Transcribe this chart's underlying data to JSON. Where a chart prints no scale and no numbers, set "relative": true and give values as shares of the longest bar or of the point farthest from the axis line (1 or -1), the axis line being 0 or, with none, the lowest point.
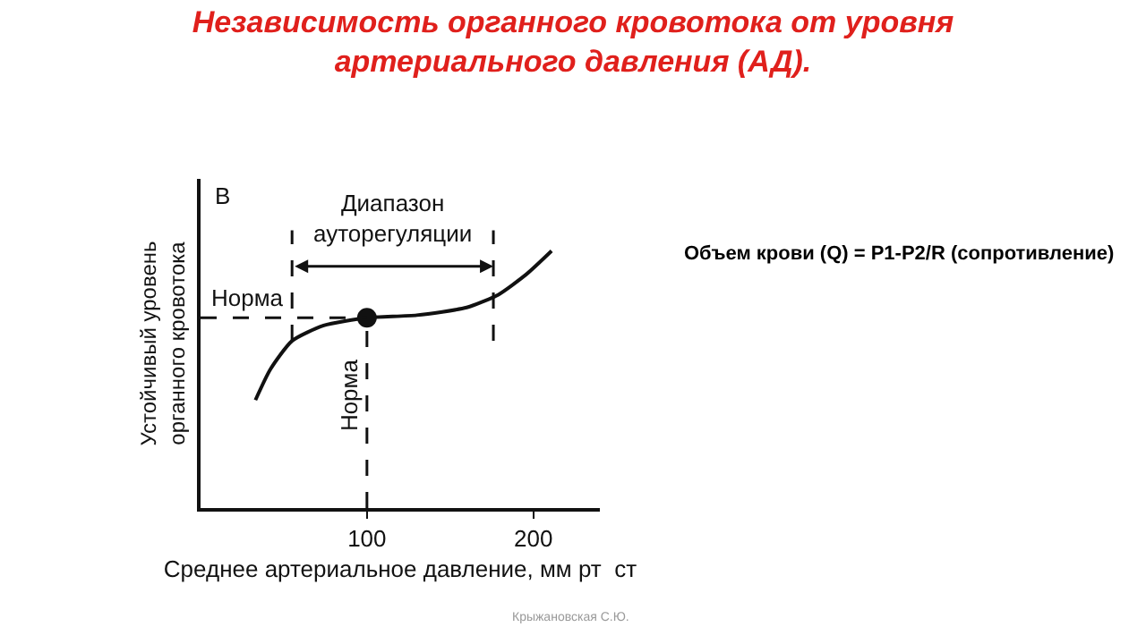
{
  "chart_data": {
    "type": "line",
    "title": "Независимость органного кровотока от уровня\nартериального давления (АД).",
    "xlabel": "Среднее артериальное давление, мм рт  ст",
    "ylabel": "Устойчивый уровень\nорганного кровотока",
    "relative": true,
    "xlim": [
      0,
      240
    ],
    "xticks": [
      100,
      200
    ],
    "series": [
      {
        "color": "#111111",
        "marker": "none",
        "line_style": "solid",
        "x": [
          33,
          42,
          55,
          74,
          100,
          130,
          160,
          179,
          196,
          211
        ],
        "values": [
          0.42,
          0.54,
          0.65,
          0.71,
          0.74,
          0.75,
          0.78,
          0.83,
          0.91,
          1.0
        ]
      },
      {
        "type": "scatter",
        "color": "#111111",
        "marker": "circle",
        "x": [
          100
        ],
        "values": [
          0.74
        ]
      }
    ],
    "ref_lines": [
      {
        "axis": "y",
        "value": 0.74,
        "label": "Норма",
        "line_style": "dashed",
        "color": "#111111"
      },
      {
        "axis": "x",
        "value": 100,
        "label": "Норма",
        "line_style": "dashed",
        "color": "#111111"
      },
      {
        "axis": "x",
        "value": 55,
        "line_style": "dashed",
        "color": "#111111"
      },
      {
        "axis": "x",
        "value": 176,
        "line_style": "dashed",
        "color": "#111111"
      }
    ],
    "annotations": [
      "В",
      "Объем крови (Q) = P1-P2/R (сопротивление)",
      "Крыжановская С.Ю.",
      "Диапазон\nауторегуляции"
    ],
    "grid": false
  }
}
